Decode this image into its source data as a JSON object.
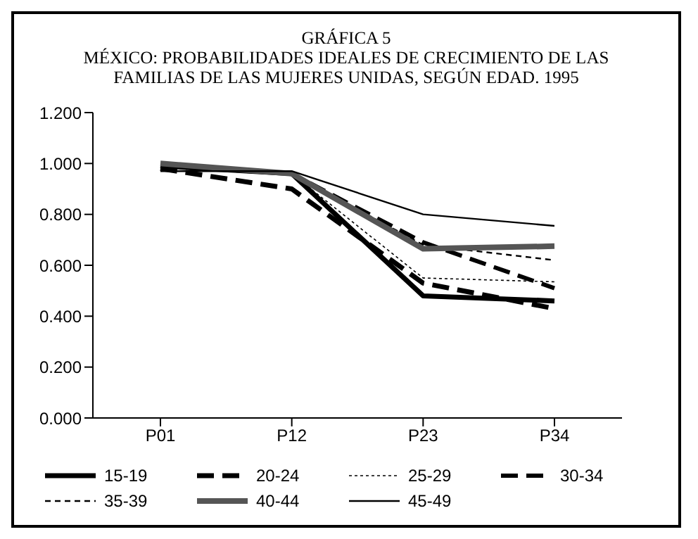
{
  "chart_data": {
    "type": "line",
    "title": "GRÁFICA 5\nMÉXICO: PROBABILIDADES IDEALES DE CRECIMIENTO DE LAS\nFAMILIAS DE LAS MUJERES UNIDAS, SEGÚN EDAD. 1995",
    "categories": [
      "P01",
      "P12",
      "P23",
      "P34"
    ],
    "ylim": [
      0,
      1.2
    ],
    "yticks": [
      {
        "value": 0,
        "label": "0.000"
      },
      {
        "value": 0.2,
        "label": "0.200"
      },
      {
        "value": 0.4,
        "label": "0.400"
      },
      {
        "value": 0.6,
        "label": "0.600"
      },
      {
        "value": 0.8,
        "label": "0.800"
      },
      {
        "value": 1,
        "label": "1.000"
      },
      {
        "value": 1.2,
        "label": "1.200"
      }
    ],
    "grid": false,
    "legend": "bottom",
    "marker": "none",
    "series": [
      {
        "name": "15-19",
        "color": "#000000",
        "line_style": "solid",
        "values": [
          0.99,
          0.96,
          0.48,
          0.46
        ]
      },
      {
        "name": "20-24",
        "color": "#000000",
        "line_style": "dashed",
        "values": [
          0.98,
          0.9,
          0.53,
          0.43
        ]
      },
      {
        "name": "25-29",
        "color": "#000000",
        "line_style": "dotted",
        "values": [
          0.99,
          0.96,
          0.55,
          0.535
        ]
      },
      {
        "name": "30-34",
        "color": "#000000",
        "line_style": "dashed",
        "values": [
          0.99,
          0.96,
          0.69,
          0.51
        ]
      },
      {
        "name": "35-39",
        "color": "#000000",
        "line_style": "dashed",
        "values": [
          0.99,
          0.96,
          0.68,
          0.62
        ]
      },
      {
        "name": "40-44",
        "color": "#555555",
        "line_style": "solid",
        "values": [
          1.0,
          0.96,
          0.665,
          0.675
        ]
      },
      {
        "name": "45-49",
        "color": "#000000",
        "line_style": "solid",
        "values": [
          0.97,
          0.97,
          0.8,
          0.755
        ]
      }
    ]
  }
}
